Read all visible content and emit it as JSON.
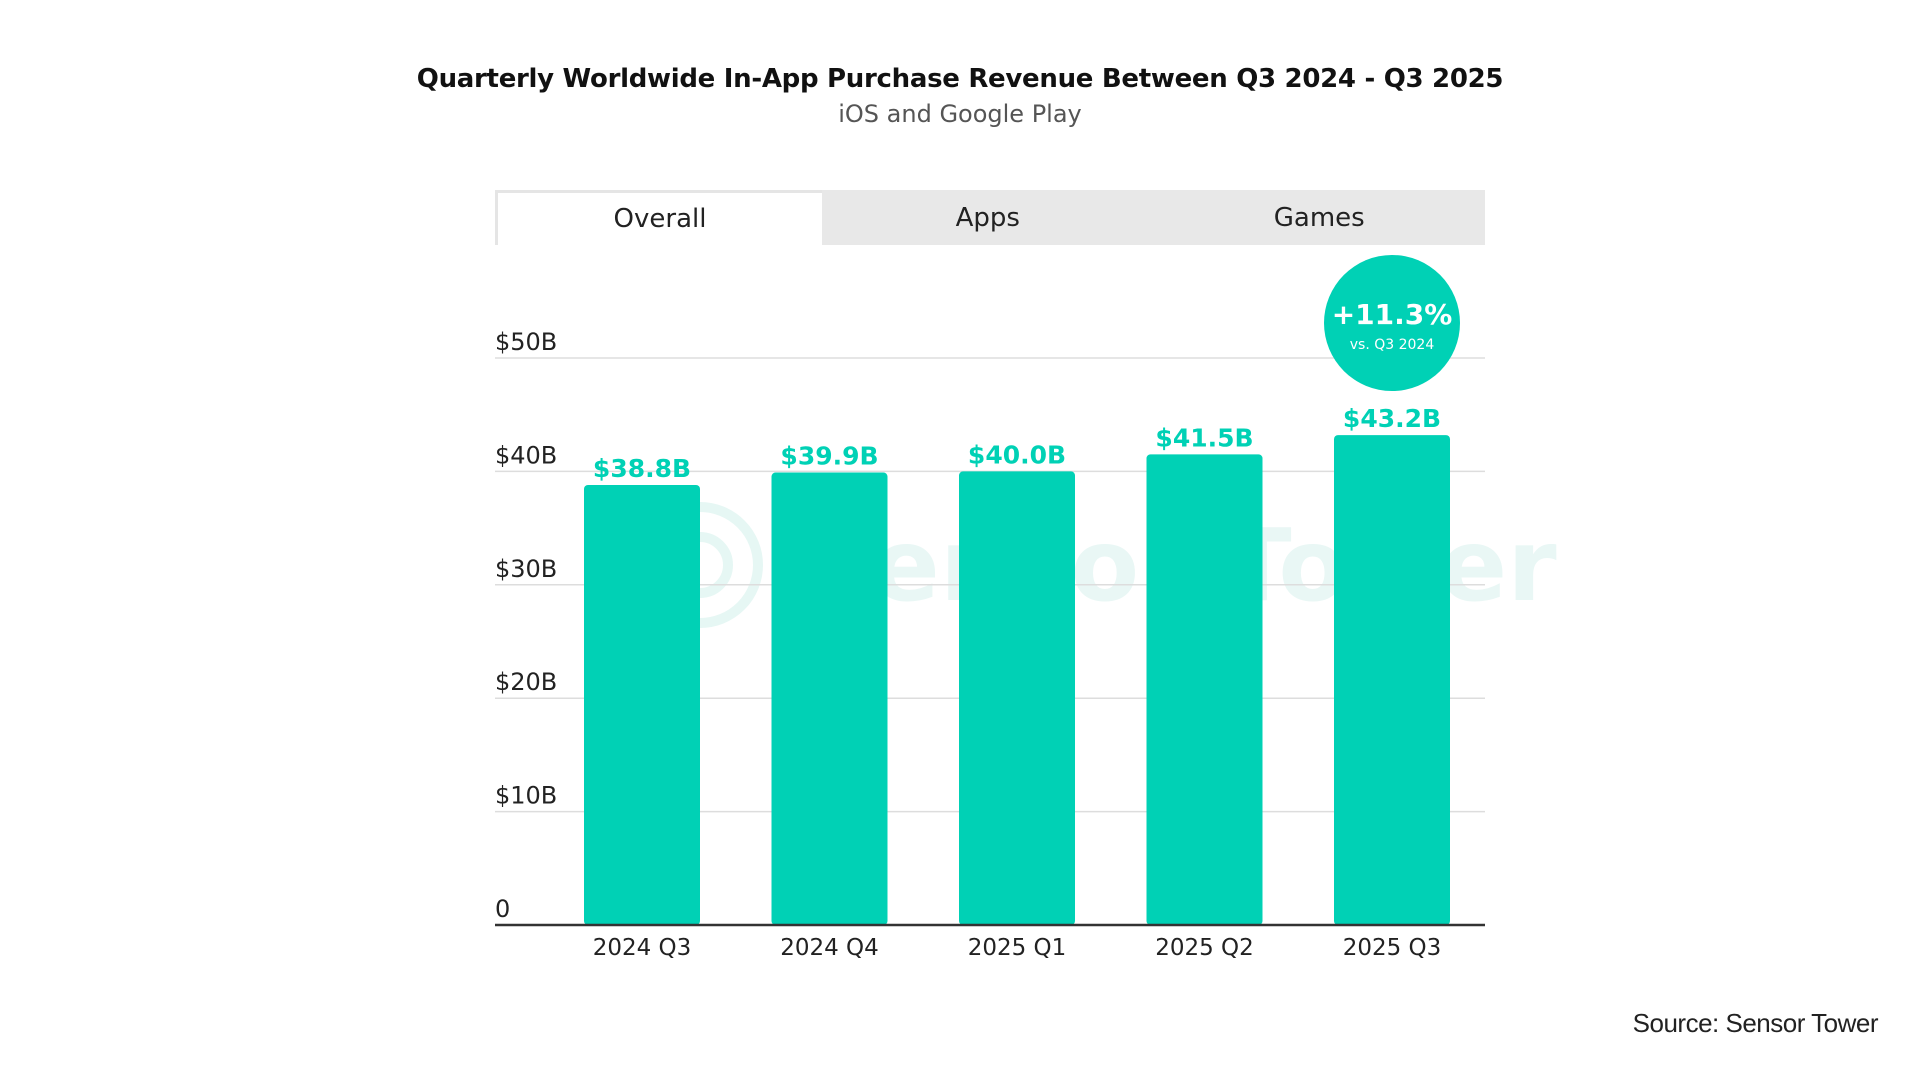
{
  "title": "Quarterly Worldwide In-App Purchase Revenue Between Q3 2024 - Q3 2025",
  "subtitle": "iOS and Google Play",
  "tabs": [
    {
      "label": "Overall",
      "active": true
    },
    {
      "label": "Apps",
      "active": false
    },
    {
      "label": "Games",
      "active": false
    }
  ],
  "source": "Source: Sensor Tower",
  "watermark": "Sensor Tower",
  "colors": {
    "bar": "#00d1b5",
    "label": "#00d1b5",
    "grid": "#dddddd",
    "axis": "#333333"
  },
  "chart_data": {
    "type": "bar",
    "title": "Quarterly Worldwide In-App Purchase Revenue Between Q3 2024 - Q3 2025",
    "subtitle": "iOS and Google Play",
    "categories": [
      "2024 Q3",
      "2024 Q4",
      "2025 Q1",
      "2025 Q2",
      "2025 Q3"
    ],
    "values": [
      38.8,
      39.9,
      40.0,
      41.5,
      43.2
    ],
    "data_labels": [
      "$38.8B",
      "$39.9B",
      "$40.0B",
      "$41.5B",
      "$43.2B"
    ],
    "y_ticks": [
      0,
      10,
      20,
      30,
      40,
      50
    ],
    "y_tick_labels": [
      "0",
      "$10B",
      "$20B",
      "$30B",
      "$40B",
      "$50B"
    ],
    "ylim": [
      0,
      50
    ],
    "grid": true,
    "xlabel": "",
    "ylabel": "",
    "annotation": {
      "category": "2025 Q3",
      "value": "+11.3%",
      "subtext": "vs. Q3 2024"
    }
  }
}
